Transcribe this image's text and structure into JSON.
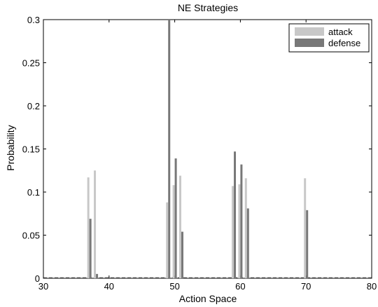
{
  "chart_data": {
    "type": "bar",
    "title": "NE Strategies",
    "xlabel": "Action Space",
    "ylabel": "Probability",
    "xlim": [
      30,
      80
    ],
    "ylim": [
      0,
      0.3
    ],
    "xticks": [
      "30",
      "40",
      "50",
      "60",
      "70",
      "80"
    ],
    "yticks": [
      "0",
      "0.05",
      "0.1",
      "0.15",
      "0.2",
      "0.25",
      "0.3"
    ],
    "grid": false,
    "legend": {
      "placement": "top-right"
    },
    "series": [
      {
        "name": "attack",
        "color": "#c8c8c8",
        "points": [
          {
            "x": 37,
            "y": 0.117
          },
          {
            "x": 38,
            "y": 0.125
          },
          {
            "x": 49,
            "y": 0.088
          },
          {
            "x": 50,
            "y": 0.108
          },
          {
            "x": 51,
            "y": 0.119
          },
          {
            "x": 59,
            "y": 0.107
          },
          {
            "x": 60,
            "y": 0.109
          },
          {
            "x": 61,
            "y": 0.116
          },
          {
            "x": 70,
            "y": 0.116
          }
        ]
      },
      {
        "name": "defense",
        "color": "#787878",
        "points": [
          {
            "x": 37,
            "y": 0.069
          },
          {
            "x": 38,
            "y": 0.005
          },
          {
            "x": 49,
            "y": 0.3
          },
          {
            "x": 50,
            "y": 0.139
          },
          {
            "x": 51,
            "y": 0.054
          },
          {
            "x": 59,
            "y": 0.147
          },
          {
            "x": 60,
            "y": 0.132
          },
          {
            "x": 61,
            "y": 0.081
          },
          {
            "x": 70,
            "y": 0.079
          }
        ]
      }
    ]
  }
}
